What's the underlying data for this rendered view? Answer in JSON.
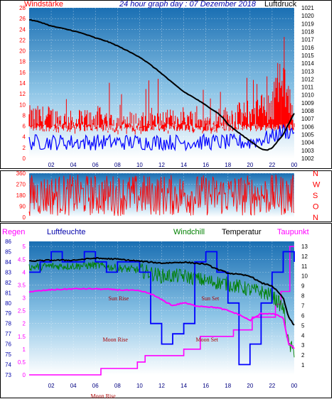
{
  "chart_data": [
    {
      "type": "line",
      "header": {
        "left_label": "Windstärke",
        "title": "24 hour graph day : 07 Dezember 2018",
        "right_label": "Luftdruck"
      },
      "x_ticks": [
        "02",
        "04",
        "06",
        "08",
        "10",
        "12",
        "14",
        "16",
        "18",
        "20",
        "22",
        "00"
      ],
      "left_axis": {
        "label": "Windstärke",
        "ticks": [
          0,
          2,
          4,
          6,
          8,
          10,
          12,
          14,
          16,
          18,
          20,
          22,
          24,
          26,
          28
        ],
        "ylim": [
          0,
          28
        ],
        "color": "#ff0000"
      },
      "right_axis": {
        "label": "Luftdruck",
        "ticks": [
          1002,
          1003,
          1004,
          1005,
          1006,
          1007,
          1008,
          1009,
          1010,
          1011,
          1012,
          1013,
          1014,
          1015,
          1016,
          1017,
          1018,
          1019,
          1020,
          1021
        ],
        "ylim": [
          1002,
          1021
        ],
        "color": "#000000"
      },
      "series": [
        {
          "name": "Luftdruck",
          "axis": "right",
          "color": "#000000",
          "x": [
            0,
            1,
            2,
            3,
            4,
            5,
            6,
            7,
            8,
            9,
            10,
            11,
            12,
            13,
            14,
            15,
            16,
            17,
            17.5,
            18,
            19,
            20,
            21,
            21.5,
            22,
            23,
            24
          ],
          "values": [
            1019.5,
            1019.2,
            1018.7,
            1018.4,
            1018.1,
            1017.7,
            1017.2,
            1016.8,
            1016.2,
            1015.5,
            1014.8,
            1013.8,
            1012.7,
            1011.5,
            1010.4,
            1009.6,
            1008.7,
            1007.8,
            1007.2,
            1006.3,
            1005.2,
            1004.2,
            1003.2,
            1003.0,
            1003.3,
            1005.0,
            1007.7
          ]
        },
        {
          "name": "Windstärke",
          "axis": "left",
          "color": "#ff0000",
          "style": "spikes",
          "x": [
            0,
            2,
            4,
            6,
            8,
            10,
            12,
            14,
            16,
            18,
            20,
            22,
            23,
            24
          ],
          "values": [
            9,
            9,
            8,
            9,
            8,
            8,
            8,
            9,
            8,
            9,
            10,
            12,
            18,
            9
          ]
        },
        {
          "name": "Windstärke avg",
          "axis": "left",
          "color": "#0000ff",
          "style": "band",
          "x": [
            0,
            2,
            4,
            6,
            8,
            10,
            12,
            14,
            16,
            18,
            20,
            22,
            23,
            24
          ],
          "values": [
            3,
            3,
            3,
            3,
            3,
            3,
            3,
            3,
            3,
            3,
            3,
            4,
            5,
            5
          ]
        }
      ]
    },
    {
      "type": "line",
      "left_axis": {
        "ticks": [
          0,
          90,
          180,
          270,
          360
        ],
        "ylim": [
          0,
          360
        ]
      },
      "right_labels": [
        "N",
        "W",
        "S",
        "O",
        "N"
      ],
      "series": [
        {
          "name": "Windrichtung",
          "color": "#ff0000",
          "style": "noise",
          "x": [
            0,
            24
          ],
          "values": [
            10,
            350
          ]
        }
      ]
    },
    {
      "type": "line",
      "legend": [
        {
          "label": "Regen",
          "color": "#ff00ff"
        },
        {
          "label": "Luftfeuchte",
          "color": "#0000aa"
        },
        {
          "label": "Windchill",
          "color": "#008000"
        },
        {
          "label": "Temperatur",
          "color": "#000000"
        },
        {
          "label": "Taupunkt",
          "color": "#ff00ff"
        }
      ],
      "x_ticks": [
        "02",
        "04",
        "06",
        "08",
        "10",
        "12",
        "14",
        "16",
        "18",
        "20",
        "22",
        "00"
      ],
      "regen_axis": {
        "ticks": [
          0,
          0.5,
          1,
          1.5,
          2,
          2.5,
          3,
          3.5,
          4,
          4.5,
          5
        ],
        "ylim": [
          0,
          5.2
        ]
      },
      "humidity_axis": {
        "ticks": [
          73,
          74,
          75,
          76,
          77,
          78,
          79,
          80,
          81,
          82,
          83,
          84,
          85,
          86
        ],
        "ylim": [
          73,
          86
        ]
      },
      "temp_axis": {
        "ticks": [
          1,
          2,
          3,
          4,
          5,
          6,
          7,
          8,
          9,
          10,
          11,
          12,
          13
        ],
        "ylim": [
          0,
          13.5
        ]
      },
      "annotations": [
        {
          "label": "Sun Rise",
          "x": 8.1,
          "y": 2.9
        },
        {
          "label": "Moon Rise",
          "x": 7.8,
          "y": 1.3
        },
        {
          "label": "Sun Set",
          "x": 16.4,
          "y": 2.9
        },
        {
          "label": "Moon Set",
          "x": 16.1,
          "y": 1.3
        },
        {
          "label": "Moon Rise",
          "x": 6.7,
          "y": -0.9
        }
      ],
      "series": [
        {
          "name": "Temperatur",
          "axis": "temp",
          "color": "#000000",
          "x": [
            0,
            2,
            4,
            6,
            8,
            10,
            12,
            14,
            16,
            17,
            18,
            20,
            21,
            22,
            23,
            23.5,
            24
          ],
          "values": [
            11.5,
            11.6,
            11.6,
            11.8,
            11.7,
            11.5,
            11.3,
            11.4,
            11.2,
            10.7,
            10.3,
            10.0,
            9.3,
            9.0,
            7.8,
            5.8,
            5.0
          ]
        },
        {
          "name": "Windchill",
          "axis": "temp",
          "color": "#008000",
          "style": "noisy",
          "x": [
            0,
            2,
            4,
            6,
            8,
            10,
            12,
            14,
            16,
            18,
            20,
            21,
            22,
            23,
            23.5,
            24
          ],
          "values": [
            10.9,
            11.0,
            11.0,
            11.1,
            10.8,
            10.6,
            10.0,
            10.0,
            9.5,
            9.2,
            8.6,
            8.4,
            8.0,
            6.8,
            3.0,
            2.4
          ]
        },
        {
          "name": "Taupunkt",
          "axis": "temp",
          "color": "#ff00ff",
          "x": [
            0,
            2,
            4,
            6,
            8,
            10,
            11,
            12,
            13,
            14,
            15,
            16,
            17,
            18,
            19,
            20,
            21,
            22,
            23,
            23.5,
            24
          ],
          "values": [
            8.4,
            8.6,
            8.7,
            8.7,
            8.6,
            8.5,
            8.2,
            7.6,
            7.0,
            7.3,
            7.0,
            6.9,
            6.8,
            6.5,
            6.1,
            5.5,
            6.2,
            6.2,
            5.8,
            3.1,
            2.7
          ]
        },
        {
          "name": "Luftfeuchte",
          "axis": "humidity",
          "color": "#0000ff",
          "style": "step",
          "x": [
            0,
            1,
            2,
            3,
            4,
            5,
            6,
            7,
            8,
            9,
            10,
            11,
            12,
            13,
            14,
            15,
            16,
            17,
            18,
            19,
            20,
            21,
            22,
            23,
            24
          ],
          "values": [
            83,
            84,
            85,
            84,
            84,
            85,
            84,
            83,
            84,
            84,
            83,
            78,
            76,
            77,
            78,
            84,
            85,
            83,
            80,
            74,
            76,
            80,
            83,
            85,
            84
          ]
        },
        {
          "name": "Regen",
          "axis": "regen",
          "color": "#ff00ff",
          "style": "step",
          "x": [
            0,
            5.7,
            6.5,
            9.8,
            10.5,
            14,
            15.5,
            18.5,
            20.2,
            22.3,
            22.8,
            23.6,
            24
          ],
          "values": [
            0,
            0,
            0.25,
            0.5,
            0.75,
            1.0,
            1.5,
            1.75,
            2.25,
            2.75,
            3.25,
            5.0,
            5.0
          ]
        }
      ]
    }
  ]
}
